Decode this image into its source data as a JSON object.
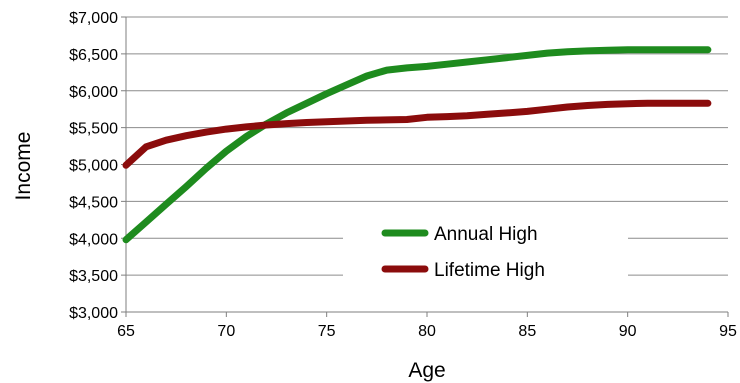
{
  "chart_data": {
    "type": "line",
    "xlabel": "Age",
    "ylabel": "Income",
    "xlim": [
      65,
      95
    ],
    "ylim": [
      3000,
      7000
    ],
    "x_ticks": [
      "65",
      "70",
      "75",
      "80",
      "85",
      "90",
      "95"
    ],
    "y_ticks": [
      "$3,000",
      "$3,500",
      "$4,000",
      "$4,500",
      "$5,000",
      "$5,500",
      "$6,000",
      "$6,500",
      "$7,000"
    ],
    "grid": "horizontal",
    "legend_position": "bottom-right",
    "series": [
      {
        "name": "Annual High",
        "color": "#1e8b1e",
        "x": [
          65,
          66,
          67,
          68,
          69,
          70,
          71,
          72,
          73,
          74,
          75,
          76,
          77,
          78,
          79,
          80,
          81,
          82,
          83,
          84,
          85,
          86,
          87,
          88,
          89,
          90,
          91,
          92,
          93,
          94
        ],
        "y": [
          3980,
          4220,
          4460,
          4700,
          4950,
          5180,
          5380,
          5550,
          5700,
          5830,
          5960,
          6080,
          6200,
          6280,
          6310,
          6330,
          6360,
          6390,
          6420,
          6450,
          6480,
          6510,
          6530,
          6540,
          6550,
          6555,
          6555,
          6555,
          6555,
          6555
        ]
      },
      {
        "name": "Lifetime High",
        "color": "#8b0c0c",
        "x": [
          65,
          66,
          67,
          68,
          69,
          70,
          71,
          72,
          73,
          74,
          75,
          76,
          77,
          78,
          79,
          80,
          81,
          82,
          83,
          84,
          85,
          86,
          87,
          88,
          89,
          90,
          91,
          92,
          93,
          94
        ],
        "y": [
          4990,
          5240,
          5330,
          5390,
          5440,
          5480,
          5510,
          5535,
          5555,
          5570,
          5580,
          5590,
          5600,
          5605,
          5610,
          5640,
          5650,
          5660,
          5680,
          5700,
          5720,
          5750,
          5780,
          5800,
          5815,
          5825,
          5830,
          5830,
          5830,
          5830
        ]
      }
    ]
  }
}
